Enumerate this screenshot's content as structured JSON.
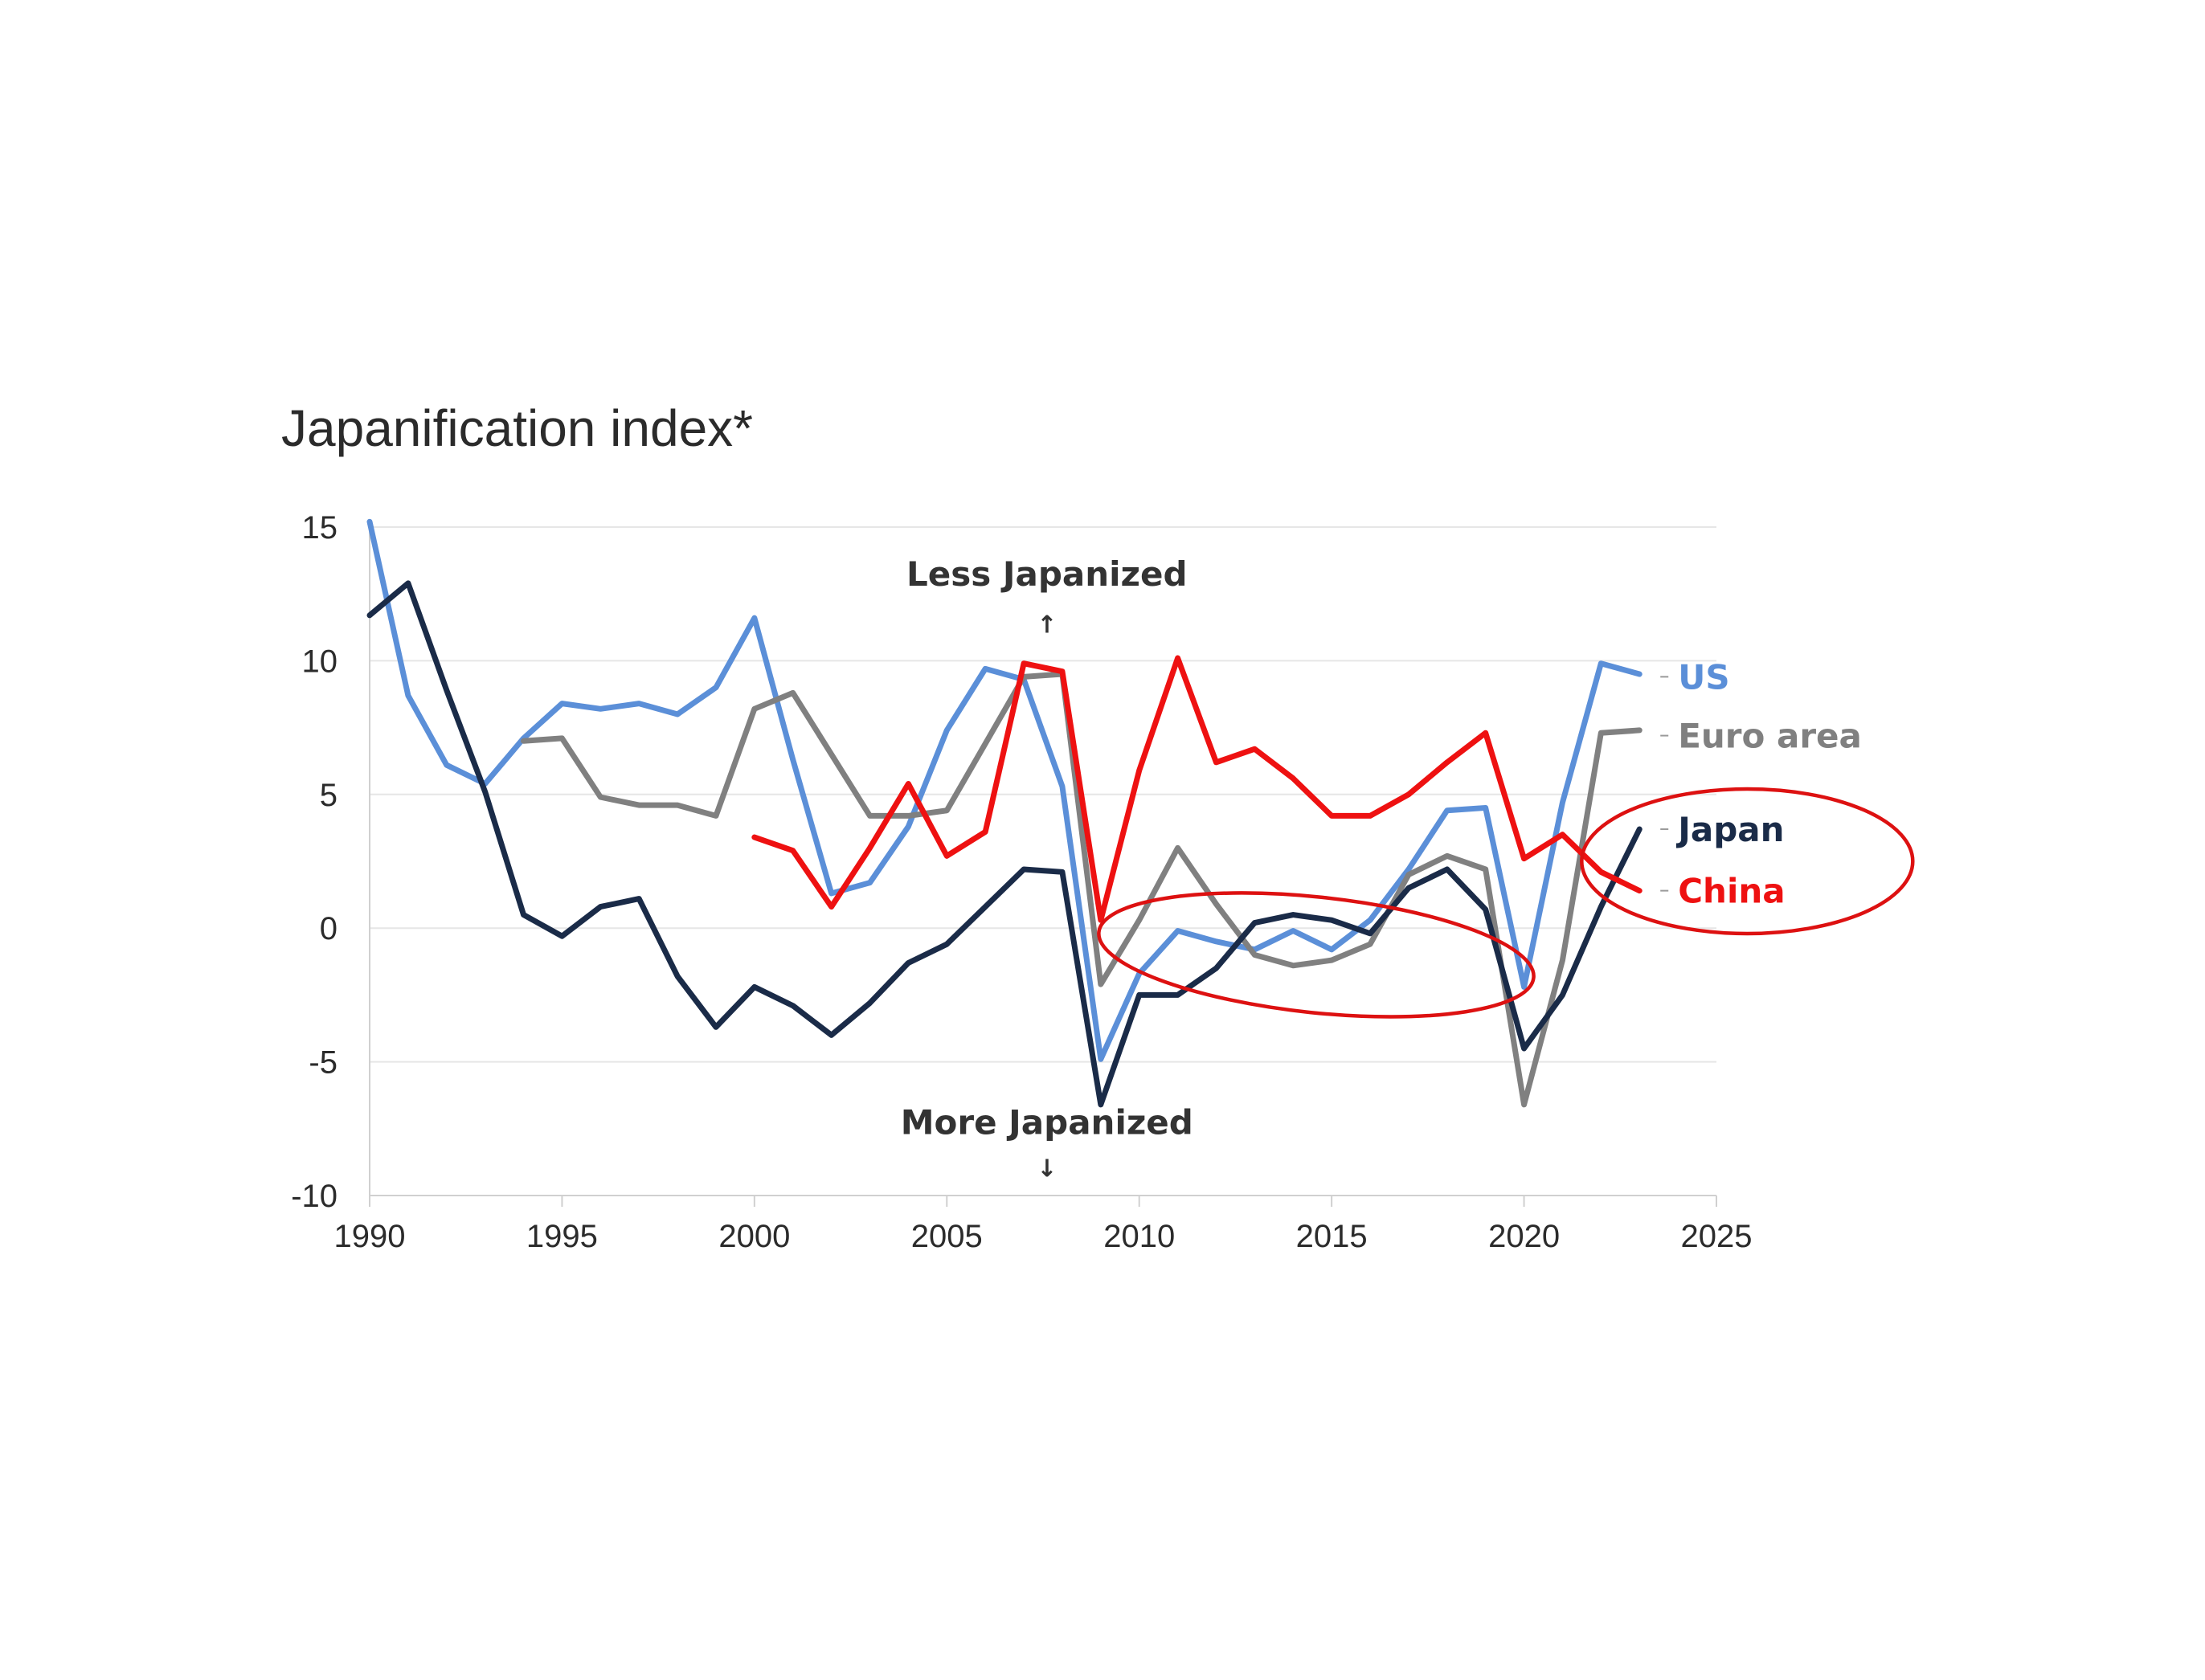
{
  "chart_data": {
    "type": "line",
    "title": "Japanification index*",
    "xlabel": "",
    "ylabel": "",
    "xlim": [
      1990,
      2025
    ],
    "ylim": [
      -10,
      15
    ],
    "x_ticks": [
      1990,
      1995,
      2000,
      2005,
      2010,
      2015,
      2020,
      2025
    ],
    "y_ticks": [
      15,
      10,
      5,
      0,
      -5,
      -10
    ],
    "grid": "horizontal",
    "annotations": {
      "less": "Less Japanized",
      "less_arrow": "↑",
      "more": "More Japanized",
      "more_arrow": "↓"
    },
    "series": [
      {
        "name": "US",
        "color": "#5b8fd8",
        "x": [
          1990,
          1991,
          1992,
          1993,
          1994,
          1995,
          1996,
          1997,
          1998,
          1999,
          2000,
          2001,
          2002,
          2003,
          2004,
          2005,
          2006,
          2007,
          2008,
          2009,
          2010,
          2011,
          2012,
          2013,
          2014,
          2015,
          2016,
          2017,
          2018,
          2019,
          2020,
          2021,
          2022,
          2023
        ],
        "values": [
          15.2,
          8.7,
          6.1,
          5.4,
          7.1,
          8.4,
          8.2,
          8.4,
          8.0,
          9.0,
          11.6,
          6.3,
          1.3,
          1.7,
          3.8,
          7.4,
          9.7,
          9.3,
          5.3,
          -4.9,
          -1.7,
          -0.1,
          -0.5,
          -0.8,
          -0.1,
          -0.8,
          0.3,
          2.2,
          4.4,
          4.5,
          -2.2,
          4.7,
          9.9,
          9.5
        ]
      },
      {
        "name": "Euro area",
        "color": "#808080",
        "x": [
          1994,
          1995,
          1996,
          1997,
          1998,
          1999,
          2000,
          2001,
          2002,
          2003,
          2004,
          2005,
          2006,
          2007,
          2008,
          2009,
          2010,
          2011,
          2012,
          2013,
          2014,
          2015,
          2016,
          2017,
          2018,
          2019,
          2020,
          2021,
          2022,
          2023
        ],
        "values": [
          7.0,
          7.1,
          4.9,
          4.6,
          4.6,
          4.2,
          8.2,
          8.8,
          6.5,
          4.2,
          4.2,
          4.4,
          6.9,
          9.4,
          9.5,
          -2.1,
          0.3,
          3.0,
          0.9,
          -1.0,
          -1.4,
          -1.2,
          -0.6,
          2.0,
          2.7,
          2.2,
          -6.6,
          -1.2,
          7.3,
          7.4
        ]
      },
      {
        "name": "Japan",
        "color": "#1a2b48",
        "x": [
          1990,
          1991,
          1992,
          1993,
          1994,
          1995,
          1996,
          1997,
          1998,
          1999,
          2000,
          2001,
          2002,
          2003,
          2004,
          2005,
          2006,
          2007,
          2008,
          2009,
          2010,
          2011,
          2012,
          2013,
          2014,
          2015,
          2016,
          2017,
          2018,
          2019,
          2020,
          2021,
          2022,
          2023
        ],
        "values": [
          11.7,
          12.9,
          8.9,
          5.1,
          0.5,
          -0.3,
          0.8,
          1.1,
          -1.8,
          -3.7,
          -2.2,
          -2.9,
          -4.0,
          -2.8,
          -1.3,
          -0.6,
          0.8,
          2.2,
          2.1,
          -6.6,
          -2.5,
          -2.5,
          -1.5,
          0.2,
          0.5,
          0.3,
          -0.2,
          1.5,
          2.2,
          0.7,
          -4.5,
          -2.5,
          0.8,
          3.7
        ]
      },
      {
        "name": "China",
        "color": "#ee1111",
        "x": [
          2000,
          2001,
          2002,
          2003,
          2004,
          2005,
          2006,
          2007,
          2008,
          2009,
          2010,
          2011,
          2012,
          2013,
          2014,
          2015,
          2016,
          2017,
          2018,
          2019,
          2020,
          2021,
          2022,
          2023
        ],
        "values": [
          3.4,
          2.9,
          0.8,
          3.0,
          5.4,
          2.7,
          3.6,
          9.9,
          9.6,
          0.3,
          5.9,
          10.1,
          6.2,
          6.7,
          5.6,
          4.2,
          4.2,
          5.0,
          6.2,
          7.3,
          2.6,
          3.5,
          2.1,
          1.4
        ]
      }
    ],
    "highlights": [
      {
        "label": "circle around 2013–2016 Japan / Euro area crossing",
        "center_x": 2014.6,
        "center_y": -1.0
      },
      {
        "label": "circle around Japan and China end labels",
        "center_x": 2025.8,
        "center_y": 2.5
      }
    ]
  }
}
